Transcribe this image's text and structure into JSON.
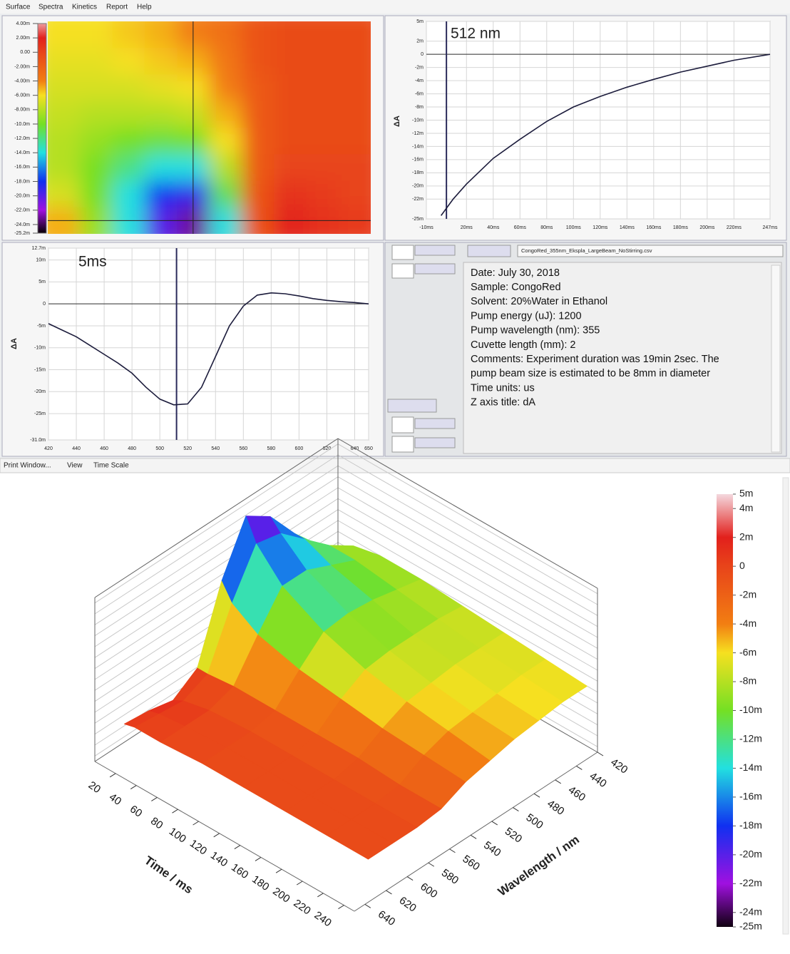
{
  "menu": [
    "Surface",
    "Spectra",
    "Kinetics",
    "Report",
    "Help"
  ],
  "status_menu": [
    "Print Window...",
    "View",
    "Time Scale"
  ],
  "file_name": "CongoRed_355nm_Ekspla_LargeBeam_NoStirring.csv",
  "info_lines": [
    "Date: July 30, 2018",
    "Sample: CongoRed",
    "Solvent: 20%Water in Ethanol",
    "Pump energy (uJ): 1200",
    "Pump wavelength (nm): 355",
    "Cuvette length (mm): 2",
    "Comments: Experiment duration was 19min 2sec. The",
    "pump beam size is estimated to be 8mm in diameter",
    "Time units: us",
    "Z axis title: dA"
  ],
  "chart_data": [
    {
      "type": "heatmap",
      "x": [
        420,
        443,
        466,
        489,
        512,
        535,
        558,
        581,
        604,
        627
      ],
      "y": [
        240,
        200,
        160,
        120,
        80,
        40,
        15,
        5
      ],
      "z": [
        [
          -6,
          -6,
          -5.5,
          -5,
          -4,
          -3,
          -1,
          -0.5,
          -0.5,
          -0.5
        ],
        [
          -6.5,
          -6.5,
          -6,
          -5.5,
          -5,
          -3.5,
          -1,
          -0.5,
          -0.5,
          -0.5
        ],
        [
          -7,
          -7,
          -7,
          -6.5,
          -6,
          -4,
          -1.5,
          -0.5,
          -0.5,
          -0.5
        ],
        [
          -7.5,
          -8,
          -8,
          -8,
          -7.5,
          -5,
          -1.5,
          -0.5,
          -0.5,
          -0.5
        ],
        [
          -8,
          -9,
          -10,
          -10.5,
          -10,
          -6,
          -1.5,
          -0.5,
          -0.5,
          -0.5
        ],
        [
          -8,
          -10,
          -12,
          -14,
          -14,
          -8,
          -1.5,
          0,
          0,
          0
        ],
        [
          -7,
          -10,
          -14,
          -18,
          -19,
          -11,
          -1,
          1,
          0.5,
          0
        ],
        [
          -5,
          -9,
          -14,
          -20,
          -23,
          -14,
          -1,
          2,
          1,
          0.5
        ]
      ],
      "colorscale": [
        [
          5,
          "#f4d8de"
        ],
        [
          2,
          "#e2201c"
        ],
        [
          0,
          "#e8441a"
        ],
        [
          -4,
          "#f27e12"
        ],
        [
          -6,
          "#f6e020"
        ],
        [
          -10,
          "#74e024"
        ],
        [
          -14,
          "#22e0e0"
        ],
        [
          -18,
          "#1030f0"
        ],
        [
          -22,
          "#a010e0"
        ],
        [
          -25,
          "#100010"
        ]
      ],
      "zlim": [
        -25.2,
        4
      ],
      "zticks": [
        {
          "value": 4,
          "label": "4.00m"
        },
        {
          "value": 2,
          "label": "2.00m"
        },
        {
          "value": 0,
          "label": "0.00"
        },
        {
          "value": -2,
          "label": "-2.00m"
        },
        {
          "value": -4,
          "label": "-4.00m"
        },
        {
          "value": -6,
          "label": "-6.00m"
        },
        {
          "value": -8,
          "label": "-8.00m"
        },
        {
          "value": -10,
          "label": "-10.0m"
        },
        {
          "value": -12,
          "label": "-12.0m"
        },
        {
          "value": -14,
          "label": "-14.0m"
        },
        {
          "value": -16,
          "label": "-16.0m"
        },
        {
          "value": -18,
          "label": "-18.0m"
        },
        {
          "value": -20,
          "label": "-20.0m"
        },
        {
          "value": -22,
          "label": "-22.0m"
        },
        {
          "value": -24,
          "label": "-24.0m"
        },
        {
          "value": -25.2,
          "label": "-25.2m"
        }
      ]
    },
    {
      "type": "line",
      "title": "512 nm",
      "ylabel": "ΔA",
      "color": "#1c1c3c",
      "grid": true,
      "cursor": 5,
      "x": [
        1,
        10,
        20,
        40,
        60,
        80,
        100,
        120,
        140,
        160,
        180,
        200,
        220,
        247
      ],
      "values": [
        -24.5,
        -22,
        -19.7,
        -15.8,
        -12.9,
        -10.2,
        -8,
        -6.4,
        -5,
        -3.8,
        -2.7,
        -1.8,
        -0.9,
        0
      ],
      "xlim": [
        -10,
        247
      ],
      "ylim": [
        -25,
        5
      ],
      "xticks": [
        {
          "value": -10,
          "label": "-10ms"
        },
        {
          "value": 20,
          "label": "20ms"
        },
        {
          "value": 40,
          "label": "40ms"
        },
        {
          "value": 60,
          "label": "60ms"
        },
        {
          "value": 80,
          "label": "80ms"
        },
        {
          "value": 100,
          "label": "100ms"
        },
        {
          "value": 120,
          "label": "120ms"
        },
        {
          "value": 140,
          "label": "140ms"
        },
        {
          "value": 160,
          "label": "160ms"
        },
        {
          "value": 180,
          "label": "180ms"
        },
        {
          "value": 200,
          "label": "200ms"
        },
        {
          "value": 220,
          "label": "220ms"
        },
        {
          "value": 247,
          "label": "247ms"
        }
      ],
      "yticks": [
        {
          "value": 5,
          "label": "5m"
        },
        {
          "value": 2,
          "label": "2m"
        },
        0,
        {
          "value": -2,
          "label": "-2m"
        },
        {
          "value": -4,
          "label": "-4m"
        },
        {
          "value": -6,
          "label": "-6m"
        },
        {
          "value": -8,
          "label": "-8m"
        },
        {
          "value": -10,
          "label": "-10m"
        },
        {
          "value": -12,
          "label": "-12m"
        },
        {
          "value": -14,
          "label": "-14m"
        },
        {
          "value": -16,
          "label": "-16m"
        },
        {
          "value": -18,
          "label": "-18m"
        },
        {
          "value": -20,
          "label": "-20m"
        },
        {
          "value": -22,
          "label": "-22m"
        },
        {
          "value": -25,
          "label": "-25m"
        }
      ]
    },
    {
      "type": "line",
      "title": "5ms",
      "ylabel": "ΔA",
      "color": "#1c1c3c",
      "grid": true,
      "cursor": 512,
      "x": [
        420,
        430,
        440,
        450,
        460,
        470,
        480,
        490,
        500,
        510,
        520,
        530,
        540,
        550,
        560,
        570,
        580,
        590,
        600,
        610,
        620,
        630,
        640,
        650
      ],
      "values": [
        -4.5,
        -6,
        -7.5,
        -9.5,
        -11.5,
        -13.5,
        -15.8,
        -19,
        -21.7,
        -23,
        -22.8,
        -19,
        -12,
        -5,
        -0.5,
        2,
        2.5,
        2.3,
        1.8,
        1.2,
        0.8,
        0.5,
        0.3,
        0
      ],
      "xlim": [
        420,
        650
      ],
      "ylim": [
        -31,
        12.7
      ],
      "xticks": [
        420,
        440,
        460,
        480,
        500,
        520,
        540,
        560,
        580,
        600,
        620,
        640,
        650
      ],
      "yticks": [
        {
          "value": 12.7,
          "label": "12.7m"
        },
        {
          "value": 10,
          "label": "10m"
        },
        {
          "value": 5,
          "label": "5m"
        },
        0,
        {
          "value": -5,
          "label": "-5m"
        },
        {
          "value": -10,
          "label": "-10m"
        },
        {
          "value": -15,
          "label": "-15m"
        },
        {
          "value": -20,
          "label": "-20m"
        },
        {
          "value": -25,
          "label": "-25m"
        },
        {
          "value": -31,
          "label": "-31.0m"
        }
      ]
    },
    {
      "type": "surface",
      "xlabel": "Time / ms",
      "ylabel": "Wavelength / nm",
      "xlim": [
        0,
        250
      ],
      "ylim": [
        420,
        650
      ],
      "zlim": [
        5,
        -25
      ],
      "xticks": [
        20,
        40,
        60,
        80,
        100,
        120,
        140,
        160,
        180,
        200,
        220,
        240
      ],
      "yticks": [
        420,
        440,
        460,
        480,
        500,
        520,
        540,
        560,
        580,
        600,
        620,
        640
      ],
      "zticks": [
        {
          "value": 5,
          "label": "5m"
        },
        {
          "value": 4,
          "label": "4m"
        },
        {
          "value": 2,
          "label": "2m"
        },
        0,
        {
          "value": -2,
          "label": "-2m"
        },
        {
          "value": -4,
          "label": "-4m"
        },
        {
          "value": -6,
          "label": "-6m"
        },
        {
          "value": -8,
          "label": "-8m"
        },
        {
          "value": -10,
          "label": "-10m"
        },
        {
          "value": -12,
          "label": "-12m"
        },
        {
          "value": -14,
          "label": "-14m"
        },
        {
          "value": -16,
          "label": "-16m"
        },
        {
          "value": -18,
          "label": "-18m"
        },
        {
          "value": -20,
          "label": "-20m"
        },
        {
          "value": -22,
          "label": "-22m"
        },
        {
          "value": -24,
          "label": "-24m"
        },
        {
          "value": -25,
          "label": "-25m"
        }
      ]
    }
  ]
}
